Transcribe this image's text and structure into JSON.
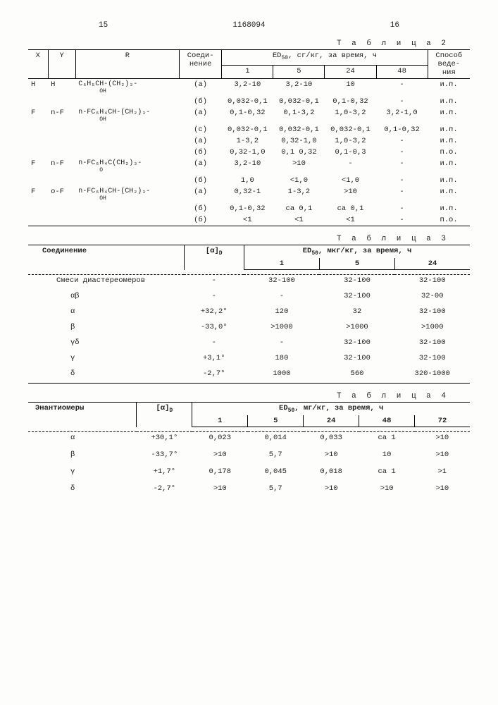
{
  "header": {
    "leftNum": "15",
    "docNum": "1168094",
    "rightNum": "16"
  },
  "table2": {
    "title": "Т а б л и ц а  2",
    "cols": {
      "X": "X",
      "Y": "Y",
      "R": "R",
      "conn": "Соеди-\nнение",
      "ed": "ED",
      "edSub": "50",
      "edUnit": ", сг/кг, за время, ч",
      "t1": "1",
      "t5": "5",
      "t24": "24",
      "t48": "48",
      "method": "Способ\nведе-\nния"
    },
    "rows": [
      {
        "X": "H",
        "Y": "H",
        "R": "C₆H₅CH-(CH₂)₃-",
        "Rsub": "OH",
        "c": "(а)",
        "v": [
          "3,2-10",
          "3,2-10",
          "10",
          "-"
        ],
        "m": "и.п."
      },
      {
        "X": "",
        "Y": "",
        "R": "",
        "Rsub": "",
        "c": "(б)",
        "v": [
          "0,032-0,1",
          "0,032-0,1",
          "0,1-0,32",
          "-"
        ],
        "m": "и.п."
      },
      {
        "X": "F",
        "Y": "n-F",
        "R": "n-FC₆H₄CH-(CH₂)₃-",
        "Rsub": "OH",
        "c": "(а)",
        "v": [
          "0,1-0,32",
          "0,1-3,2",
          "1,0-3,2",
          "3,2-1,0"
        ],
        "m": "и.п."
      },
      {
        "X": "",
        "Y": "",
        "R": "",
        "Rsub": "",
        "c": "(с)",
        "v": [
          "0,032-0,1",
          "0,032-0,1",
          "0,032-0,1",
          "0,1-0,32"
        ],
        "m": "и.п."
      },
      {
        "X": "",
        "Y": "",
        "R": "",
        "Rsub": "",
        "c": "(а)",
        "v": [
          "1-3,2",
          "0,32-1,0",
          "1,0-3,2",
          "-"
        ],
        "m": "и.п."
      },
      {
        "X": "",
        "Y": "",
        "R": "",
        "Rsub": "",
        "c": "(б)",
        "v": [
          "0,32-1,0",
          "0,1 0,32",
          "0,1-0,3",
          "-"
        ],
        "m": "п.о."
      },
      {
        "X": "F",
        "Y": "n-F",
        "R": "n-FC₆H₄C(CH₂)₃-",
        "Rsub": "O",
        "c": "(а)",
        "v": [
          "3,2-10",
          ">10",
          "-",
          "-"
        ],
        "m": "и.п."
      },
      {
        "X": "",
        "Y": "",
        "R": "",
        "Rsub": "",
        "c": "(б)",
        "v": [
          "1,0",
          "<1,0",
          "<1,0",
          "-"
        ],
        "m": "и.п."
      },
      {
        "X": "F",
        "Y": "o-F",
        "R": "n-FC₆H₄CH-(CH₂)₃-",
        "Rsub": "OH",
        "c": "(а)",
        "v": [
          "0,32-1",
          "1-3,2",
          ">10",
          "-"
        ],
        "m": "и.п."
      },
      {
        "X": "",
        "Y": "",
        "R": "",
        "Rsub": "",
        "c": "(б)",
        "v": [
          "0,1-0,32",
          "са 0,1",
          "са 0,1",
          "-"
        ],
        "m": "и.п."
      },
      {
        "X": "",
        "Y": "",
        "R": "",
        "Rsub": "",
        "c": "(б)",
        "v": [
          "<1",
          "<1",
          "<1",
          "-"
        ],
        "m": "п.о."
      }
    ]
  },
  "table3": {
    "title": "Т а б л и ц а  3",
    "cols": {
      "conn": "Соединение",
      "alpha": "[α]",
      "alphaSub": "D",
      "ed": "ED",
      "edSub": "50",
      "edUnit": ", мкг/кг, за время, ч",
      "t1": "1",
      "t5": "5",
      "t24": "24"
    },
    "rows": [
      {
        "n": "Смеси диастереомеров",
        "a": "-",
        "v": [
          "32-100",
          "32-100",
          "32-100"
        ]
      },
      {
        "n": "αβ",
        "a": "-",
        "v": [
          "-",
          "32-100",
          "32-00"
        ]
      },
      {
        "n": "α",
        "a": "+32,2°",
        "v": [
          "120",
          "32",
          "32-100"
        ]
      },
      {
        "n": "β",
        "a": "-33,0°",
        "v": [
          ">1000",
          ">1000",
          ">1000"
        ]
      },
      {
        "n": "γδ",
        "a": "-",
        "v": [
          "-",
          "32-100",
          "32-100"
        ]
      },
      {
        "n": "γ",
        "a": "+3,1°",
        "v": [
          "180",
          "32-100",
          "32-100"
        ]
      },
      {
        "n": "δ",
        "a": "-2,7°",
        "v": [
          "1000",
          "560",
          "320-1000"
        ]
      }
    ]
  },
  "table4": {
    "title": "Т а б л и ц а  4",
    "cols": {
      "conn": "Энантиомеры",
      "alpha": "[α]",
      "alphaSub": "D",
      "ed": "ED",
      "edSub": "50",
      "edUnit": ", мг/кг, за время, ч",
      "t1": "1",
      "t5": "5",
      "t24": "24",
      "t48": "48",
      "t72": "72"
    },
    "rows": [
      {
        "n": "α",
        "a": "+30,1°",
        "v": [
          "0,023",
          "0,014",
          "0,033",
          "са 1",
          ">10"
        ]
      },
      {
        "n": "β",
        "a": "-33,7°",
        "v": [
          ">10",
          "5,7",
          ">10",
          "10",
          ">10"
        ]
      },
      {
        "n": "γ",
        "a": "+1,7°",
        "v": [
          "0,178",
          "0,045",
          "0,018",
          "са 1",
          ">1"
        ]
      },
      {
        "n": "δ",
        "a": "-2,7°",
        "v": [
          ">10",
          "5,7",
          ">10",
          ">10",
          ">10"
        ]
      }
    ]
  }
}
